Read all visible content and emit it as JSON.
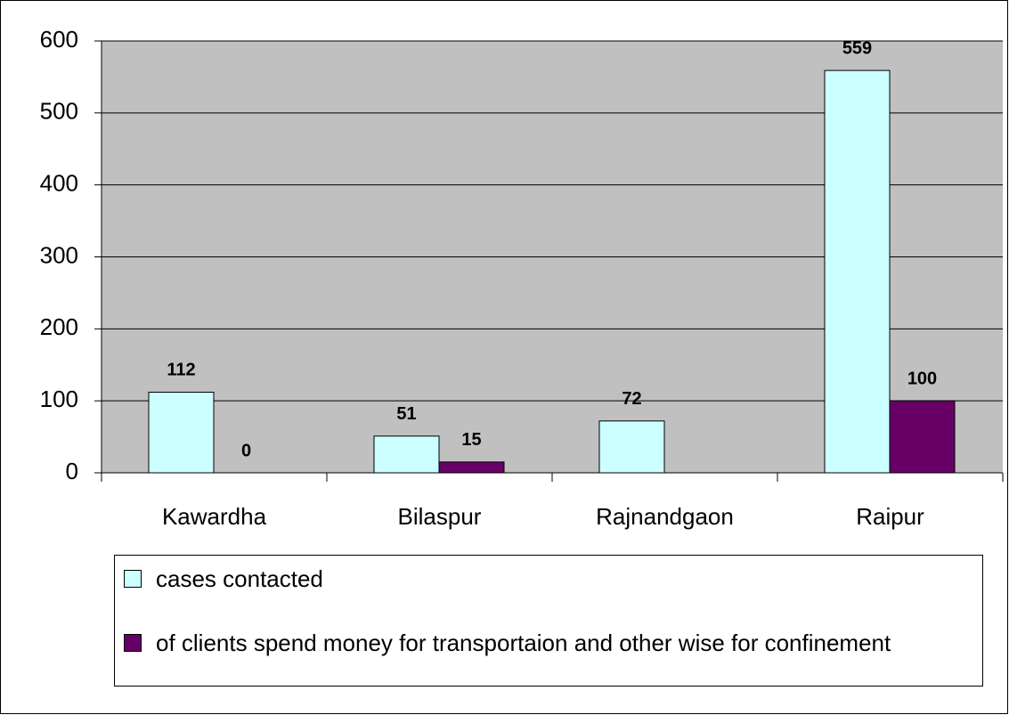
{
  "chart_data": {
    "type": "bar",
    "categories": [
      "Kawardha",
      "Bilaspur",
      "Rajnandgaon",
      "Raipur"
    ],
    "series": [
      {
        "name": "cases contacted",
        "color": "#ccffff",
        "values": [
          112,
          51,
          72,
          559
        ]
      },
      {
        "name": "of clients spend money for transportaion and other wise for confinement",
        "color": "#660066",
        "values": [
          0,
          15,
          null,
          100
        ]
      }
    ],
    "ylim": [
      0,
      600
    ],
    "yticks": [
      0,
      100,
      200,
      300,
      400,
      500,
      600
    ],
    "grid": true,
    "legend": "bottom"
  }
}
